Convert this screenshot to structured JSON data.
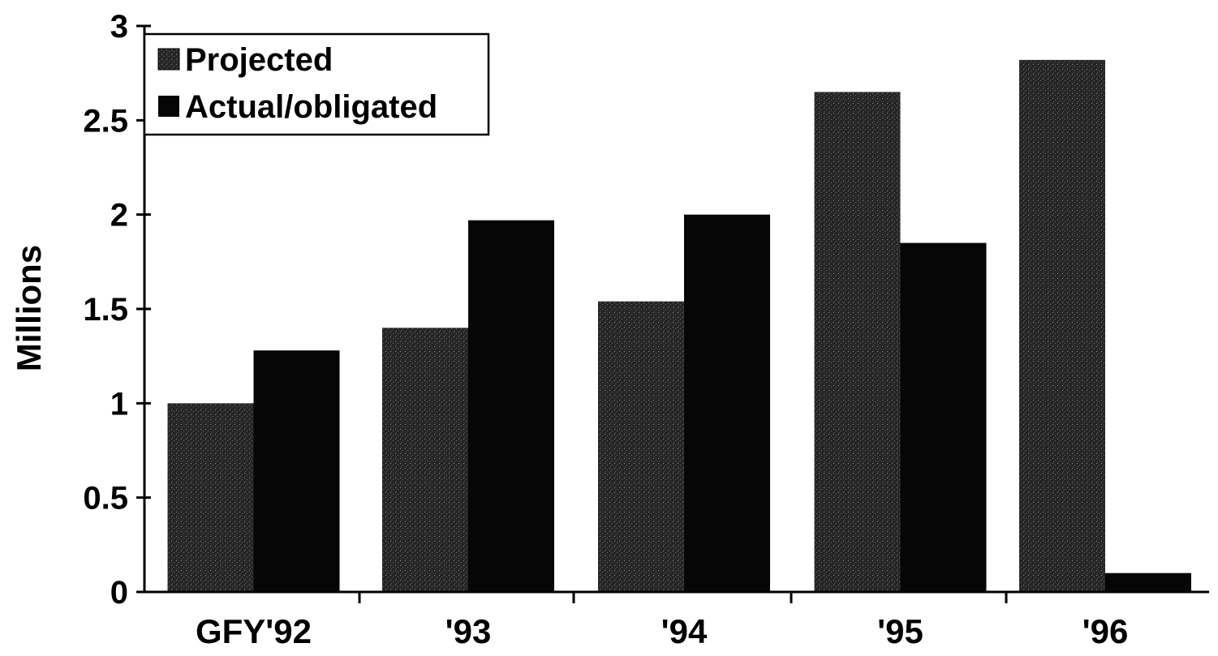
{
  "chart_data": {
    "type": "bar",
    "categories": [
      "GFY'92",
      "'93",
      "'94",
      "'95",
      "'96"
    ],
    "series": [
      {
        "name": "Projected",
        "values": [
          1.0,
          1.4,
          1.54,
          2.65,
          2.82
        ],
        "color": "#2a2a2a",
        "pattern": "speckled"
      },
      {
        "name": "Actual/obligated",
        "values": [
          1.28,
          1.97,
          2.0,
          1.85,
          0.1
        ],
        "color": "#060606",
        "pattern": "solid"
      }
    ],
    "title": "",
    "xlabel": "",
    "ylabel": "Millions",
    "ylim": [
      0,
      3
    ],
    "yticks": [
      "0",
      "0.5",
      "1",
      "1.5",
      "2",
      "2.5",
      "3"
    ],
    "ytick_values": [
      0,
      0.5,
      1,
      1.5,
      2,
      2.5,
      3
    ],
    "grid": false,
    "legend_position": "top-left"
  }
}
